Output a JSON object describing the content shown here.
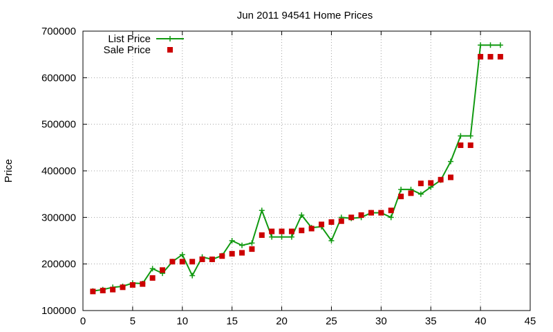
{
  "chart_data": {
    "type": "line",
    "title": "Jun 2011 94541 Home Prices",
    "xlabel": "",
    "ylabel": "Price",
    "xlim": [
      0,
      45
    ],
    "ylim": [
      100000,
      700000
    ],
    "x_ticks": [
      0,
      5,
      10,
      15,
      20,
      25,
      30,
      35,
      40,
      45
    ],
    "y_ticks": [
      100000,
      200000,
      300000,
      400000,
      500000,
      600000,
      700000
    ],
    "grid": true,
    "legend_position": "top-left",
    "series": [
      {
        "name": "List Price",
        "style": "line+cross",
        "color": "#109910",
        "x": [
          1,
          2,
          3,
          4,
          5,
          6,
          7,
          8,
          9,
          10,
          11,
          12,
          13,
          14,
          15,
          16,
          17,
          18,
          19,
          20,
          21,
          22,
          23,
          24,
          25,
          26,
          27,
          28,
          29,
          30,
          31,
          32,
          33,
          34,
          35,
          36,
          37,
          38,
          39,
          40,
          41,
          42
        ],
        "y": [
          142000,
          145000,
          150000,
          152000,
          159000,
          158000,
          190000,
          180000,
          205000,
          220000,
          175000,
          215000,
          210000,
          218000,
          250000,
          240000,
          245000,
          315000,
          258000,
          258000,
          258000,
          305000,
          278000,
          280000,
          250000,
          300000,
          298000,
          300000,
          310000,
          310000,
          300000,
          360000,
          360000,
          350000,
          365000,
          380000,
          420000,
          475000,
          475000,
          670000,
          670000,
          670000
        ]
      },
      {
        "name": "Sale Price",
        "style": "square",
        "color": "#cc0000",
        "x": [
          1,
          2,
          3,
          4,
          5,
          6,
          7,
          8,
          9,
          10,
          11,
          12,
          13,
          14,
          15,
          16,
          17,
          18,
          19,
          20,
          21,
          22,
          23,
          24,
          25,
          26,
          27,
          28,
          29,
          30,
          31,
          32,
          33,
          34,
          35,
          36,
          37,
          38,
          39,
          40,
          41,
          42
        ],
        "y": [
          141000,
          143000,
          145000,
          150000,
          155000,
          157000,
          170000,
          187000,
          205000,
          205000,
          205000,
          210000,
          210000,
          217000,
          222000,
          224000,
          232000,
          262000,
          270000,
          270000,
          270000,
          272000,
          276000,
          285000,
          290000,
          292000,
          300000,
          305000,
          310000,
          310000,
          315000,
          345000,
          352000,
          373000,
          374000,
          381000,
          386000,
          455000,
          455000,
          645000,
          645000,
          645000
        ]
      }
    ]
  }
}
